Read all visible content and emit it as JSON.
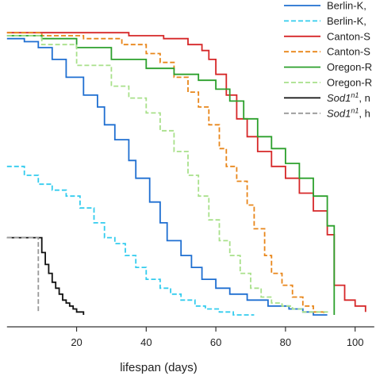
{
  "chart_data": {
    "type": "line",
    "xlabel": "lifespan (days)",
    "ylabel": "",
    "xlim": [
      -2,
      106
    ],
    "ylim": [
      -0.02,
      1.0
    ],
    "x_ticks": [
      20,
      40,
      60,
      80,
      100
    ],
    "x_tick_labels": [
      "20",
      "40",
      "60",
      "80",
      "100"
    ],
    "grid": false,
    "legend_position": "top-right",
    "series": [
      {
        "name": "Berlin-K,",
        "color": "#1f6fd1",
        "dash": "solid",
        "x": [
          0,
          5,
          9,
          13,
          17,
          22,
          26,
          28,
          31,
          35,
          37,
          41,
          44,
          46,
          50,
          53,
          56,
          60,
          64,
          69,
          75,
          81,
          85,
          88,
          92
        ],
        "y": [
          0.95,
          0.94,
          0.92,
          0.88,
          0.82,
          0.76,
          0.72,
          0.66,
          0.61,
          0.54,
          0.48,
          0.4,
          0.33,
          0.27,
          0.22,
          0.18,
          0.14,
          0.11,
          0.09,
          0.07,
          0.05,
          0.04,
          0.03,
          0.02,
          0.02
        ]
      },
      {
        "name": "Berlin-K,",
        "color": "#33ccee",
        "dash": "dashed",
        "x": [
          0,
          5,
          9,
          13,
          17,
          21,
          25,
          28,
          31,
          34,
          37,
          40,
          44,
          47,
          50,
          54,
          57,
          61,
          65,
          69,
          71
        ],
        "y": [
          0.52,
          0.49,
          0.46,
          0.44,
          0.42,
          0.38,
          0.33,
          0.28,
          0.26,
          0.22,
          0.18,
          0.14,
          0.11,
          0.09,
          0.07,
          0.05,
          0.04,
          0.03,
          0.02,
          0.02,
          0.02
        ]
      },
      {
        "name": "Canton-S",
        "color": "#d62728",
        "dash": "solid",
        "x": [
          0,
          10,
          25,
          35,
          45,
          52,
          56,
          58,
          60,
          63,
          66,
          69,
          72,
          76,
          80,
          84,
          88,
          92,
          94,
          97,
          100,
          103
        ],
        "y": [
          0.97,
          0.97,
          0.97,
          0.96,
          0.95,
          0.93,
          0.91,
          0.88,
          0.83,
          0.76,
          0.68,
          0.62,
          0.57,
          0.52,
          0.48,
          0.43,
          0.37,
          0.29,
          0.12,
          0.07,
          0.05,
          0.03
        ]
      },
      {
        "name": "Canton-S",
        "color": "#e8861a",
        "dash": "dashed",
        "x": [
          0,
          10,
          22,
          33,
          40,
          44,
          48,
          52,
          55,
          58,
          61,
          63,
          66,
          69,
          71,
          74,
          76,
          79,
          82,
          85,
          88,
          91
        ],
        "y": [
          0.97,
          0.96,
          0.95,
          0.93,
          0.9,
          0.87,
          0.82,
          0.77,
          0.72,
          0.66,
          0.58,
          0.52,
          0.47,
          0.39,
          0.31,
          0.22,
          0.16,
          0.12,
          0.08,
          0.05,
          0.03,
          0.02
        ]
      },
      {
        "name": "Oregon-R",
        "color": "#2ca02c",
        "dash": "solid",
        "x": [
          0,
          10,
          20,
          30,
          40,
          48,
          55,
          60,
          64,
          68,
          72,
          76,
          80,
          84,
          88,
          92,
          94
        ],
        "y": [
          0.96,
          0.95,
          0.92,
          0.88,
          0.85,
          0.83,
          0.81,
          0.78,
          0.74,
          0.68,
          0.62,
          0.58,
          0.53,
          0.48,
          0.42,
          0.32,
          0.02
        ]
      },
      {
        "name": "Oregon-R",
        "color": "#a8e08a",
        "dash": "dashed",
        "x": [
          0,
          10,
          20,
          30,
          35,
          40,
          44,
          48,
          52,
          55,
          58,
          61,
          64,
          67,
          70,
          73,
          76,
          79,
          82,
          85,
          88,
          92
        ],
        "y": [
          0.96,
          0.93,
          0.86,
          0.79,
          0.75,
          0.7,
          0.64,
          0.57,
          0.49,
          0.42,
          0.34,
          0.27,
          0.22,
          0.16,
          0.11,
          0.08,
          0.06,
          0.05,
          0.04,
          0.03,
          0.03,
          0.02
        ]
      },
      {
        "name": "Sod1n1, ",
        "color": "#111111",
        "dash": "solid",
        "x": [
          0,
          9,
          10,
          11,
          12,
          13,
          14,
          15,
          16,
          17,
          18,
          19,
          20,
          22
        ],
        "y": [
          0.28,
          0.28,
          0.23,
          0.19,
          0.16,
          0.13,
          0.11,
          0.09,
          0.07,
          0.06,
          0.05,
          0.04,
          0.03,
          0.02
        ]
      },
      {
        "name": "Sod1n1, h",
        "color": "#999999",
        "dash": "dashed",
        "x": [
          0,
          9,
          9,
          9,
          9,
          9
        ],
        "y": [
          0.28,
          0.28,
          0.2,
          0.12,
          0.06,
          0.03
        ]
      }
    ],
    "legend_entries": [
      {
        "label": "Berlin-K,",
        "color": "#1f6fd1",
        "dash": "solid"
      },
      {
        "label": "Berlin-K,",
        "color": "#33ccee",
        "dash": "dashed"
      },
      {
        "label": "Canton-S",
        "color": "#d62728",
        "dash": "solid"
      },
      {
        "label": "Canton-S",
        "color": "#e8861a",
        "dash": "dashed"
      },
      {
        "label": "Oregon-R",
        "color": "#2ca02c",
        "dash": "solid"
      },
      {
        "label": "Oregon-R",
        "color": "#a8e08a",
        "dash": "dashed"
      },
      {
        "label": "Sod1",
        "sup": "n1",
        "rest": ", n",
        "color": "#111111",
        "dash": "solid"
      },
      {
        "label": "Sod1",
        "sup": "n1",
        "rest": ", h",
        "color": "#999999",
        "dash": "dashed"
      }
    ]
  }
}
